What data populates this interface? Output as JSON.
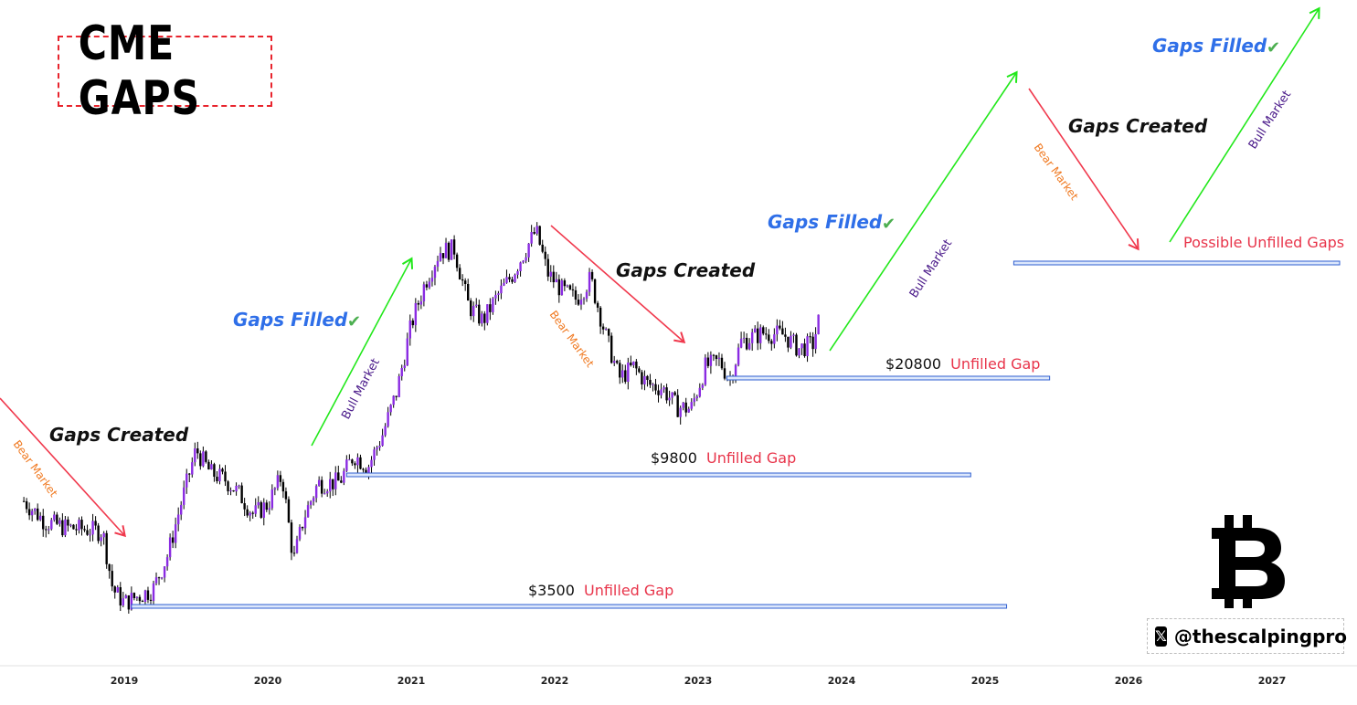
{
  "header": {
    "title": "CME GAPS",
    "handle": "@thescalpingpro",
    "handle_icon": "x-logo-icon",
    "brand_icon": "bitcoin-icon"
  },
  "colors": {
    "bull_arrow": "#22e81b",
    "bear_arrow": "#f0394d",
    "gap_line": "#2f5fd0",
    "gaps_filled_text": "#2f6fe8",
    "check": "#4caf50",
    "unfilled_text": "#e8344a",
    "bear_label": "#f07a22",
    "bull_label": "#4a1a8a",
    "candle": "#000000",
    "candle_accent": "#8a2be2"
  },
  "chart_data": {
    "type": "candlestick",
    "x_axis": {
      "ticks": [
        "2019",
        "2020",
        "2021",
        "2022",
        "2023",
        "2024",
        "2025",
        "2026",
        "2027"
      ],
      "range": [
        2018.3,
        2027.6
      ]
    },
    "y_axis": {
      "scale": "log",
      "labels_shown": false
    },
    "price_path": [
      [
        2018.3,
        8000
      ],
      [
        2018.45,
        6800
      ],
      [
        2018.6,
        6500
      ],
      [
        2018.75,
        6400
      ],
      [
        2018.85,
        6300
      ],
      [
        2018.92,
        4000
      ],
      [
        2019.0,
        3600
      ],
      [
        2019.1,
        3800
      ],
      [
        2019.2,
        4000
      ],
      [
        2019.3,
        5200
      ],
      [
        2019.4,
        8000
      ],
      [
        2019.5,
        12000
      ],
      [
        2019.6,
        10000
      ],
      [
        2019.7,
        9500
      ],
      [
        2019.8,
        8500
      ],
      [
        2019.9,
        7200
      ],
      [
        2020.0,
        7800
      ],
      [
        2020.1,
        9800
      ],
      [
        2020.18,
        5000
      ],
      [
        2020.25,
        7000
      ],
      [
        2020.35,
        9200
      ],
      [
        2020.5,
        9300
      ],
      [
        2020.6,
        11500
      ],
      [
        2020.7,
        10500
      ],
      [
        2020.8,
        13500
      ],
      [
        2020.9,
        19000
      ],
      [
        2021.0,
        32000
      ],
      [
        2021.1,
        45000
      ],
      [
        2021.2,
        57000
      ],
      [
        2021.3,
        58000
      ],
      [
        2021.4,
        37000
      ],
      [
        2021.5,
        33000
      ],
      [
        2021.6,
        40000
      ],
      [
        2021.7,
        47000
      ],
      [
        2021.8,
        58000
      ],
      [
        2021.87,
        67000
      ],
      [
        2021.95,
        48000
      ],
      [
        2022.05,
        42000
      ],
      [
        2022.15,
        39000
      ],
      [
        2022.25,
        46000
      ],
      [
        2022.35,
        30000
      ],
      [
        2022.45,
        21000
      ],
      [
        2022.55,
        23000
      ],
      [
        2022.65,
        20000
      ],
      [
        2022.75,
        19500
      ],
      [
        2022.85,
        16800
      ],
      [
        2022.95,
        16500
      ],
      [
        2023.05,
        23000
      ],
      [
        2023.15,
        24000
      ],
      [
        2023.22,
        20800
      ],
      [
        2023.3,
        28000
      ],
      [
        2023.45,
        30000
      ],
      [
        2023.6,
        29500
      ],
      [
        2023.7,
        26500
      ],
      [
        2023.8,
        27500
      ],
      [
        2023.85,
        34500
      ]
    ],
    "gaps": [
      {
        "price_label": "$3500",
        "status": "Unfilled Gap",
        "from": 2019.05,
        "to": 2025.15
      },
      {
        "price_label": "$9800",
        "status": "Unfilled Gap",
        "from": 2020.55,
        "to": 2024.9
      },
      {
        "price_label": "$20800",
        "status": "Unfilled Gap",
        "from": 2023.2,
        "to": 2025.45
      },
      {
        "price_label": "",
        "status": "Possible Unfilled Gaps",
        "from": 2025.2,
        "to": 2027.55
      }
    ],
    "annotations": {
      "gaps_created": "Gaps Created",
      "gaps_filled": "Gaps Filled",
      "bear_market": "Bear Market",
      "bull_market": "Bull Market",
      "check_mark": "✔"
    },
    "legend": "none",
    "grid": false
  }
}
